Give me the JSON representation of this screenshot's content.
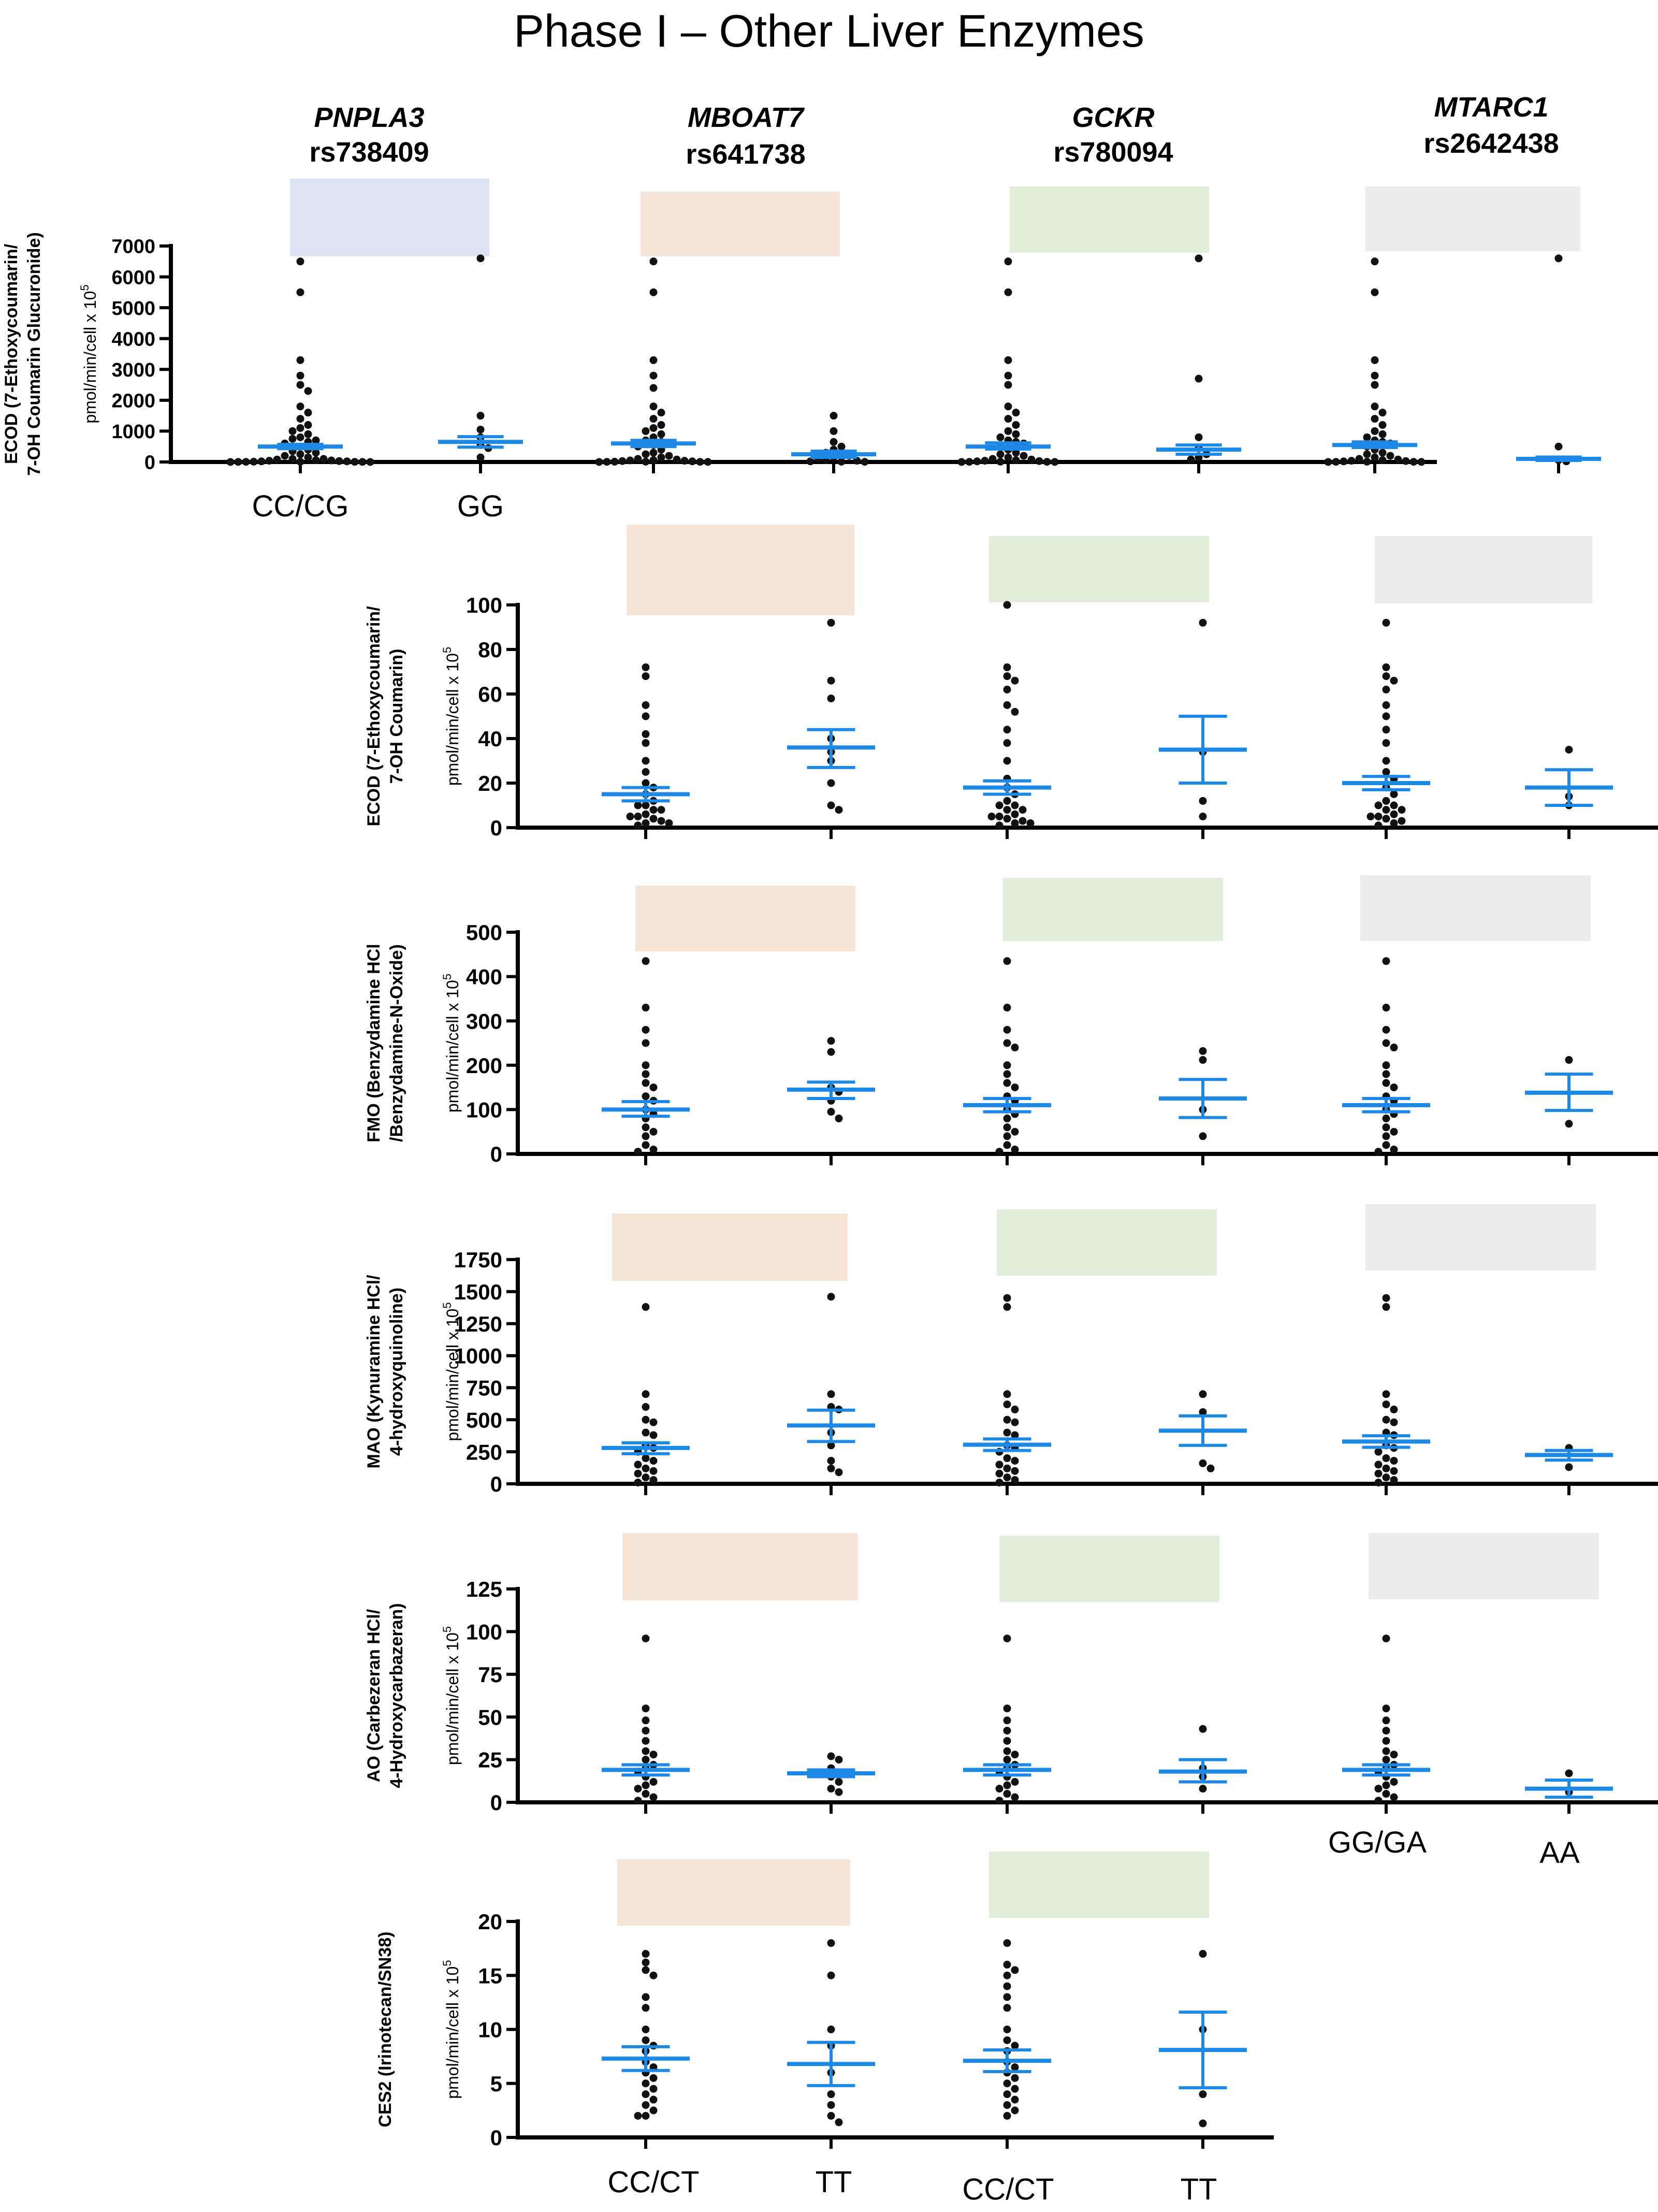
{
  "title": "Phase I – Other Liver Enzymes",
  "colors": {
    "pnpla3": "#dbe4f2",
    "mboat7": "#f8e5d9",
    "gckr": "#e4efdb",
    "mtarc1": "#ededed",
    "mean_bar": "#1e88e5",
    "points": "#111111",
    "axis": "#000000"
  },
  "genes": [
    {
      "name": "PNPLA3",
      "snp": "rs738409",
      "color_key": "pnpla3"
    },
    {
      "name": "MBOAT7",
      "snp": "rs641738",
      "color_key": "mboat7"
    },
    {
      "name": "GCKR",
      "snp": "rs780094",
      "color_key": "gckr"
    },
    {
      "name": "MTARC1",
      "snp": "rs2642438",
      "color_key": "mtarc1"
    }
  ],
  "genotype_labels": {
    "pnpla3": [
      "CC/CG",
      "GG"
    ],
    "mtarc1": [
      "GG/GA",
      "AA"
    ],
    "mboat7": [
      "CC/CT",
      "TT"
    ],
    "gckr": [
      "CC/CT",
      "TT"
    ]
  },
  "unit_label": "pmol/min/cell x 10",
  "unit_exponent": "5",
  "chart_data": [
    {
      "type": "scatter",
      "id": "ecod-glucuronide",
      "ylabel_lines": [
        "ECOD (7-Ethoxycoumarin/",
        "7-OH Coumarin Glucuronide)"
      ],
      "ylim": [
        0,
        7000
      ],
      "yticks": [
        0,
        1000,
        2000,
        3000,
        4000,
        5000,
        6000,
        7000
      ],
      "groups": [
        {
          "gene": "PNPLA3",
          "genotype": "CC/CG",
          "mean": 500,
          "sem_low": 430,
          "sem_high": 570,
          "points": [
            6500,
            5500,
            3300,
            2800,
            2500,
            2300,
            1800,
            1600,
            1400,
            1200,
            1100,
            1000,
            900,
            800,
            750,
            700,
            650,
            600,
            500,
            400,
            350,
            300,
            250,
            200,
            150,
            100,
            100,
            80,
            60,
            50,
            40,
            30,
            20,
            20,
            10,
            10,
            5,
            5,
            2,
            2,
            1,
            1
          ]
        },
        {
          "gene": "PNPLA3",
          "genotype": "GG",
          "mean": 650,
          "sem_low": 480,
          "sem_high": 820,
          "points": [
            6600,
            1500,
            1050,
            800,
            550,
            450,
            150
          ]
        },
        {
          "gene": "MBOAT7",
          "genotype": "CC/CT",
          "mean": 600,
          "sem_low": 500,
          "sem_high": 700,
          "points": [
            6500,
            5500,
            3300,
            2800,
            2400,
            1800,
            1600,
            1400,
            1200,
            1100,
            1000,
            900,
            800,
            700,
            650,
            600,
            550,
            500,
            400,
            300,
            250,
            200,
            150,
            100,
            80,
            60,
            50,
            40,
            30,
            20,
            10,
            10,
            5,
            5,
            2,
            1
          ]
        },
        {
          "gene": "MBOAT7",
          "genotype": "TT",
          "mean": 250,
          "sem_low": 150,
          "sem_high": 350,
          "points": [
            1500,
            1000,
            650,
            500,
            400,
            300,
            250,
            200,
            150,
            100,
            60,
            40,
            20,
            10,
            5
          ]
        },
        {
          "gene": "GCKR",
          "genotype": "CC/CT",
          "mean": 500,
          "sem_low": 420,
          "sem_high": 620,
          "points": [
            6500,
            5500,
            3300,
            2800,
            2500,
            1800,
            1600,
            1400,
            1200,
            1000,
            900,
            800,
            700,
            650,
            600,
            500,
            400,
            300,
            250,
            200,
            150,
            100,
            80,
            60,
            40,
            30,
            20,
            10,
            5,
            5,
            2,
            1
          ]
        },
        {
          "gene": "GCKR",
          "genotype": "TT",
          "mean": 400,
          "sem_low": 250,
          "sem_high": 550,
          "points": [
            6600,
            2700,
            800,
            450,
            250,
            150,
            80
          ]
        },
        {
          "gene": "MTARC1",
          "genotype": "GG/GA",
          "mean": 550,
          "sem_low": 470,
          "sem_high": 650,
          "points": [
            6500,
            5500,
            3300,
            2800,
            2500,
            1800,
            1600,
            1400,
            1200,
            1000,
            900,
            800,
            700,
            650,
            600,
            500,
            400,
            300,
            250,
            200,
            150,
            100,
            80,
            60,
            40,
            30,
            20,
            10,
            5,
            5,
            2,
            1
          ]
        },
        {
          "gene": "MTARC1",
          "genotype": "AA",
          "mean": 100,
          "sem_low": 50,
          "sem_high": 160,
          "points": [
            6600,
            500,
            60,
            20
          ]
        }
      ]
    },
    {
      "type": "scatter",
      "id": "ecod-coumarin",
      "ylabel_lines": [
        "ECOD (7-Ethoxycoumarin/",
        "7-OH Coumarin)"
      ],
      "ylim": [
        0,
        100
      ],
      "yticks": [
        0,
        20,
        40,
        60,
        80,
        100
      ],
      "groups": [
        {
          "gene": "MBOAT7",
          "genotype": "CC/CT",
          "mean": 15,
          "sem_low": 12,
          "sem_high": 18,
          "points": [
            72,
            68,
            55,
            50,
            42,
            38,
            30,
            25,
            20,
            18,
            15,
            12,
            10,
            10,
            8,
            8,
            6,
            5,
            5,
            4,
            3,
            2,
            2,
            1
          ]
        },
        {
          "gene": "MBOAT7",
          "genotype": "TT",
          "mean": 36,
          "sem_low": 27,
          "sem_high": 44,
          "points": [
            92,
            66,
            58,
            40,
            34,
            30,
            20,
            10,
            8
          ]
        },
        {
          "gene": "GCKR",
          "genotype": "CC/CT",
          "mean": 18,
          "sem_low": 15,
          "sem_high": 21,
          "points": [
            100,
            72,
            68,
            66,
            62,
            55,
            52,
            44,
            38,
            30,
            22,
            18,
            15,
            12,
            10,
            10,
            8,
            8,
            6,
            5,
            5,
            4,
            3,
            2,
            2,
            1
          ]
        },
        {
          "gene": "GCKR",
          "genotype": "TT",
          "mean": 35,
          "sem_low": 20,
          "sem_high": 50,
          "points": [
            92,
            34,
            12,
            5
          ]
        },
        {
          "gene": "MTARC1",
          "genotype": "GG/GA",
          "mean": 20,
          "sem_low": 17,
          "sem_high": 23,
          "points": [
            92,
            72,
            68,
            66,
            62,
            55,
            50,
            44,
            38,
            30,
            25,
            22,
            18,
            15,
            12,
            10,
            10,
            8,
            8,
            6,
            5,
            5,
            4,
            3,
            2,
            1
          ]
        },
        {
          "gene": "MTARC1",
          "genotype": "AA",
          "mean": 18,
          "sem_low": 10,
          "sem_high": 26,
          "points": [
            35,
            14,
            10
          ]
        }
      ]
    },
    {
      "type": "scatter",
      "id": "fmo",
      "ylabel_lines": [
        "FMO (Benzydamine HCl",
        "/Benzydamine-N-Oxide)"
      ],
      "ylim": [
        0,
        500
      ],
      "yticks": [
        0,
        100,
        200,
        300,
        400,
        500
      ],
      "groups": [
        {
          "gene": "MBOAT7",
          "genotype": "CC/CT",
          "mean": 100,
          "sem_low": 85,
          "sem_high": 118,
          "points": [
            435,
            330,
            280,
            250,
            200,
            180,
            160,
            150,
            130,
            120,
            100,
            90,
            80,
            60,
            50,
            40,
            20,
            10,
            5
          ]
        },
        {
          "gene": "MBOAT7",
          "genotype": "TT",
          "mean": 145,
          "sem_low": 125,
          "sem_high": 162,
          "points": [
            255,
            230,
            150,
            140,
            120,
            95,
            80
          ]
        },
        {
          "gene": "GCKR",
          "genotype": "CC/CT",
          "mean": 110,
          "sem_low": 95,
          "sem_high": 125,
          "points": [
            435,
            330,
            280,
            250,
            240,
            200,
            180,
            160,
            150,
            130,
            120,
            100,
            90,
            80,
            60,
            50,
            40,
            20,
            10,
            5
          ]
        },
        {
          "gene": "GCKR",
          "genotype": "TT",
          "mean": 125,
          "sem_low": 82,
          "sem_high": 168,
          "points": [
            232,
            212,
            100,
            40
          ]
        },
        {
          "gene": "MTARC1",
          "genotype": "GG/GA",
          "mean": 110,
          "sem_low": 95,
          "sem_high": 125,
          "points": [
            435,
            330,
            280,
            250,
            240,
            200,
            180,
            160,
            150,
            130,
            120,
            100,
            90,
            80,
            60,
            50,
            40,
            20,
            10,
            5
          ]
        },
        {
          "gene": "MTARC1",
          "genotype": "AA",
          "mean": 138,
          "sem_low": 98,
          "sem_high": 180,
          "points": [
            212,
            68
          ]
        }
      ]
    },
    {
      "type": "scatter",
      "id": "mao",
      "ylabel_lines": [
        "MAO (Kynuramine HCl/",
        "4-hydroxyquinoline)"
      ],
      "ylim": [
        0,
        1750
      ],
      "yticks": [
        0,
        250,
        500,
        750,
        1000,
        1250,
        1500,
        1750
      ],
      "groups": [
        {
          "gene": "MBOAT7",
          "genotype": "CC/CT",
          "mean": 280,
          "sem_low": 235,
          "sem_high": 320,
          "points": [
            1380,
            700,
            600,
            500,
            480,
            400,
            380,
            300,
            280,
            250,
            200,
            180,
            150,
            120,
            100,
            80,
            50,
            30,
            10
          ]
        },
        {
          "gene": "MBOAT7",
          "genotype": "TT",
          "mean": 455,
          "sem_low": 330,
          "sem_high": 575,
          "points": [
            1460,
            700,
            600,
            580,
            400,
            300,
            180,
            120,
            90
          ]
        },
        {
          "gene": "GCKR",
          "genotype": "CC/CT",
          "mean": 305,
          "sem_low": 260,
          "sem_high": 350,
          "points": [
            1450,
            1380,
            700,
            620,
            580,
            500,
            480,
            400,
            380,
            300,
            280,
            250,
            200,
            180,
            150,
            120,
            100,
            80,
            50,
            30,
            10
          ]
        },
        {
          "gene": "GCKR",
          "genotype": "TT",
          "mean": 415,
          "sem_low": 300,
          "sem_high": 530,
          "points": [
            700,
            560,
            160,
            120
          ]
        },
        {
          "gene": "MTARC1",
          "genotype": "GG/GA",
          "mean": 330,
          "sem_low": 285,
          "sem_high": 375,
          "points": [
            1450,
            1380,
            700,
            620,
            580,
            500,
            480,
            400,
            380,
            300,
            280,
            250,
            200,
            180,
            150,
            120,
            100,
            80,
            50,
            30,
            10
          ]
        },
        {
          "gene": "MTARC1",
          "genotype": "AA",
          "mean": 225,
          "sem_low": 185,
          "sem_high": 260,
          "points": [
            280,
            130
          ]
        }
      ]
    },
    {
      "type": "scatter",
      "id": "ao",
      "ylabel_lines": [
        "AO (Carbezeran HCl/",
        "4-Hydroxycarbazeran)"
      ],
      "ylim": [
        0,
        125
      ],
      "yticks": [
        0,
        25,
        50,
        75,
        100,
        125
      ],
      "groups": [
        {
          "gene": "MBOAT7",
          "genotype": "CC/CT",
          "mean": 19,
          "sem_low": 16,
          "sem_high": 22,
          "points": [
            96,
            55,
            48,
            42,
            36,
            30,
            28,
            25,
            22,
            20,
            18,
            15,
            12,
            10,
            8,
            5,
            3,
            1
          ]
        },
        {
          "gene": "MBOAT7",
          "genotype": "TT",
          "mean": 17,
          "sem_low": 15,
          "sem_high": 19,
          "points": [
            27,
            25,
            20,
            17,
            15,
            12,
            8,
            6
          ]
        },
        {
          "gene": "GCKR",
          "genotype": "CC/CT",
          "mean": 19,
          "sem_low": 16,
          "sem_high": 22,
          "points": [
            96,
            55,
            48,
            42,
            36,
            30,
            28,
            25,
            22,
            20,
            18,
            15,
            12,
            10,
            8,
            5,
            3,
            1
          ]
        },
        {
          "gene": "GCKR",
          "genotype": "TT",
          "mean": 18,
          "sem_low": 12,
          "sem_high": 25,
          "points": [
            43,
            20,
            15,
            8
          ]
        },
        {
          "gene": "MTARC1",
          "genotype": "GG/GA",
          "mean": 19,
          "sem_low": 16,
          "sem_high": 22,
          "points": [
            96,
            55,
            48,
            42,
            36,
            30,
            28,
            25,
            22,
            20,
            18,
            15,
            12,
            10,
            8,
            5,
            3,
            1
          ]
        },
        {
          "gene": "MTARC1",
          "genotype": "AA",
          "mean": 8,
          "sem_low": 3,
          "sem_high": 13,
          "points": [
            17,
            6
          ]
        }
      ]
    },
    {
      "type": "scatter",
      "id": "ces2",
      "ylabel_lines": [
        "CES2 (Irinotecan/SN38)"
      ],
      "ylim": [
        0,
        20
      ],
      "yticks": [
        0,
        5,
        10,
        15,
        20
      ],
      "groups": [
        {
          "gene": "MBOAT7",
          "genotype": "CC/CT",
          "mean": 7.3,
          "sem_low": 6.2,
          "sem_high": 8.4,
          "points": [
            17,
            16.2,
            15.5,
            15,
            13,
            12,
            10,
            9,
            8.5,
            8,
            7,
            6.5,
            6,
            5.5,
            5,
            4.5,
            4,
            3.5,
            3,
            2.5,
            2,
            2
          ]
        },
        {
          "gene": "MBOAT7",
          "genotype": "TT",
          "mean": 6.8,
          "sem_low": 4.8,
          "sem_high": 8.8,
          "points": [
            18,
            15,
            10,
            8.5,
            6,
            4,
            3,
            2,
            1.4
          ]
        },
        {
          "gene": "GCKR",
          "genotype": "CC/CT",
          "mean": 7.1,
          "sem_low": 6.1,
          "sem_high": 8.1,
          "points": [
            18,
            16,
            15.5,
            15,
            14,
            13,
            12,
            10,
            9,
            8.5,
            8,
            7,
            6.5,
            6,
            5.5,
            5,
            4.5,
            4,
            3.5,
            3,
            2.5,
            2
          ]
        },
        {
          "gene": "GCKR",
          "genotype": "TT",
          "mean": 8.1,
          "sem_low": 4.6,
          "sem_high": 11.6,
          "points": [
            17,
            10,
            4,
            1.3
          ]
        }
      ]
    }
  ]
}
